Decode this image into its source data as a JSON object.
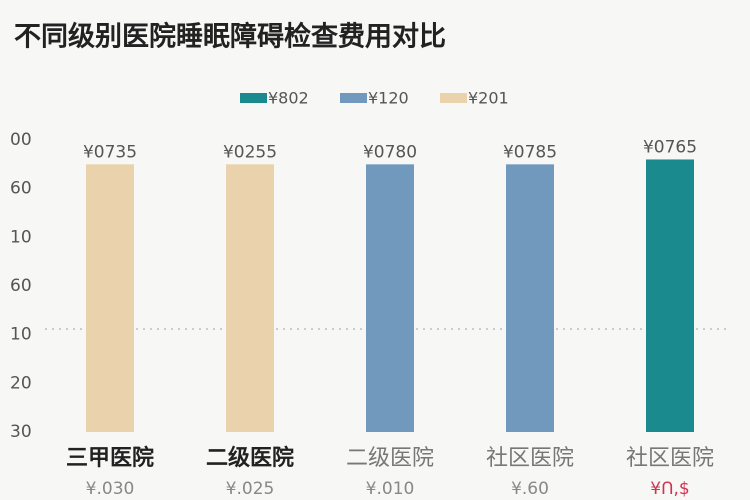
{
  "chart_data": {
    "type": "bar",
    "title": "不同级别医院睡眠障碍检查费用对比",
    "legend": [
      {
        "name": "¥802",
        "color": "#1b8a8f"
      },
      {
        "name": "¥120",
        "color": "#7199bd"
      },
      {
        "name": "¥201",
        "color": "#ead2ac"
      }
    ],
    "categories": [
      "三甲医院",
      "二级医院",
      "二级医院",
      "社区医院",
      "社区医院"
    ],
    "values": [
      5.5,
      5.5,
      5.5,
      5.5,
      5.6
    ],
    "value_labels": [
      "¥0735",
      "¥0255",
      "¥0780",
      "¥0785",
      "¥0765"
    ],
    "category_notes": [
      "¥.030",
      "¥.025",
      "¥.010",
      "¥.60",
      "¥Ո,$"
    ],
    "colors": [
      "#ead2ac",
      "#ead2ac",
      "#7199bd",
      "#7199bd",
      "#1b8a8f"
    ],
    "ylim": [
      0,
      6
    ],
    "yticks": [
      {
        "value": 0,
        "label": "30"
      },
      {
        "value": 1,
        "label": "20"
      },
      {
        "value": 2,
        "label": "10"
      },
      {
        "value": 3,
        "label": "60"
      },
      {
        "value": 4,
        "label": "10"
      },
      {
        "value": 5,
        "label": "60"
      },
      {
        "value": 6,
        "label": "00"
      }
    ]
  }
}
